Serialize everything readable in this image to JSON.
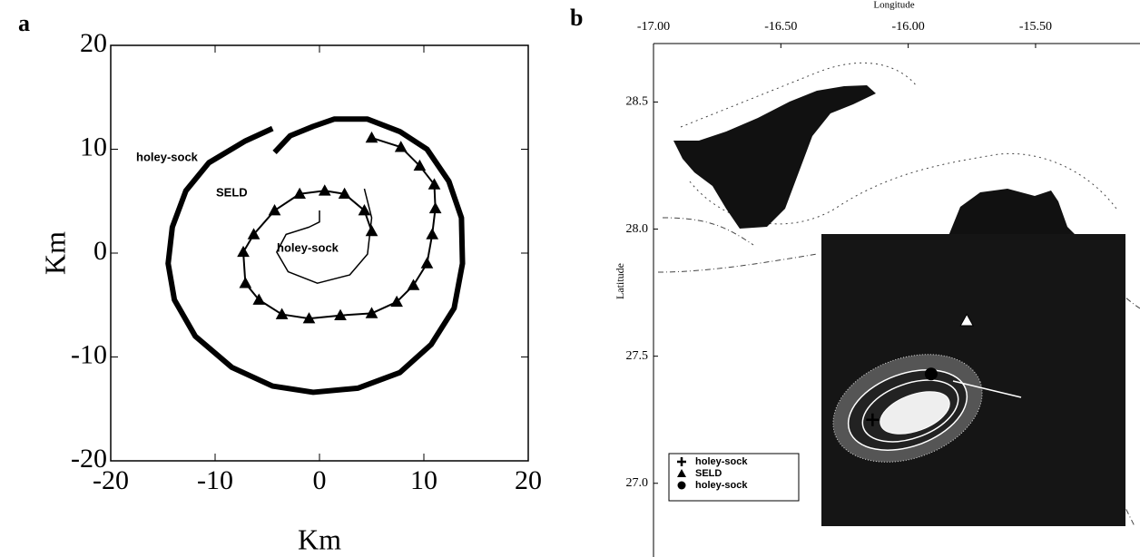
{
  "chart_data": [
    {
      "type": "line",
      "panel_label": "a",
      "xlabel": "Km",
      "ylabel": "Km",
      "xlim": [
        -20,
        20
      ],
      "ylim": [
        -20,
        20
      ],
      "xticks": [
        -20,
        -10,
        0,
        10,
        20
      ],
      "yticks": [
        -20,
        -10,
        0,
        10,
        20
      ],
      "series": [
        {
          "name": "holey-sock",
          "color": "#000000",
          "line_width": 6,
          "marker": "none",
          "x": [
            -4.3,
            -2.8,
            -0.6,
            1.4,
            4.6,
            7.7,
            10.3,
            12.4,
            13.6,
            13.7,
            12.9,
            10.7,
            7.7,
            3.7,
            -0.6,
            -4.5,
            -8.4,
            -11.9,
            -13.9,
            -14.5,
            -14.1,
            -12.8,
            -10.6,
            -7.1,
            -4.5
          ],
          "values": [
            9.7,
            11.3,
            12.2,
            12.9,
            12.9,
            11.7,
            10.0,
            6.9,
            3.4,
            -1.0,
            -5.3,
            -8.8,
            -11.5,
            -13.0,
            -13.4,
            -12.8,
            -11.0,
            -8.0,
            -4.5,
            -1.0,
            2.5,
            6.0,
            8.7,
            10.8,
            12.0
          ]
        },
        {
          "name": "SELD",
          "color": "#000000",
          "line_width": 2,
          "marker": "triangle",
          "x": [
            5.0,
            7.8,
            9.6,
            11.0,
            11.1,
            10.8,
            10.3,
            9.0,
            7.4,
            5.0,
            2.0,
            -1.0,
            -3.6,
            -5.8,
            -7.1,
            -7.3,
            -6.3,
            -4.3,
            -1.9,
            0.5,
            2.4,
            4.3,
            5.0
          ],
          "values": [
            11.1,
            10.2,
            8.4,
            6.6,
            4.3,
            1.8,
            -1.0,
            -3.1,
            -4.7,
            -5.8,
            -6.0,
            -6.3,
            -5.9,
            -4.5,
            -2.9,
            0.1,
            1.8,
            4.1,
            5.7,
            6.0,
            5.7,
            4.1,
            2.1
          ]
        },
        {
          "name": "holey-sock",
          "color": "#000000",
          "line_width": 1.5,
          "marker": "none",
          "x": [
            4.3,
            5.0,
            4.6,
            2.9,
            -0.2,
            -3.0,
            -4.1,
            -3.2,
            -1.0,
            0.0,
            0.0
          ],
          "values": [
            6.2,
            3.4,
            -0.1,
            -2.1,
            -2.9,
            -1.8,
            0.1,
            1.8,
            2.5,
            3.0,
            4.1
          ]
        }
      ]
    },
    {
      "type": "map",
      "panel_label": "b",
      "xlabel": "Longitude",
      "ylabel": "Latitude",
      "xlim": [
        -17.0,
        -15.09
      ],
      "ylim": [
        26.71,
        28.73
      ],
      "xticks": [
        {
          "value": -17,
          "label": "-17.00"
        },
        {
          "value": -16.5,
          "label": "-16.50"
        },
        {
          "value": -16,
          "label": "-16.00"
        },
        {
          "value": -15.5,
          "label": "-15.50"
        }
      ],
      "yticks": [
        28.5,
        {
          "value": 28,
          "label": "28.0"
        },
        27.5,
        {
          "value": 27,
          "label": "27.0"
        }
      ],
      "legend": "lower left",
      "series": [
        {
          "name": "holey-sock",
          "color": "#000000",
          "marker": "cross",
          "x": [
            -16.14
          ],
          "values": [
            27.25
          ]
        },
        {
          "name": "SELD",
          "color": "#ffffff",
          "marker": "triangle",
          "x": [
            -15.77
          ],
          "values": [
            27.64
          ]
        },
        {
          "name": "holey-sock",
          "color": "#000000",
          "marker": "circle",
          "x": [
            -15.91
          ],
          "values": [
            27.43
          ]
        }
      ]
    }
  ]
}
